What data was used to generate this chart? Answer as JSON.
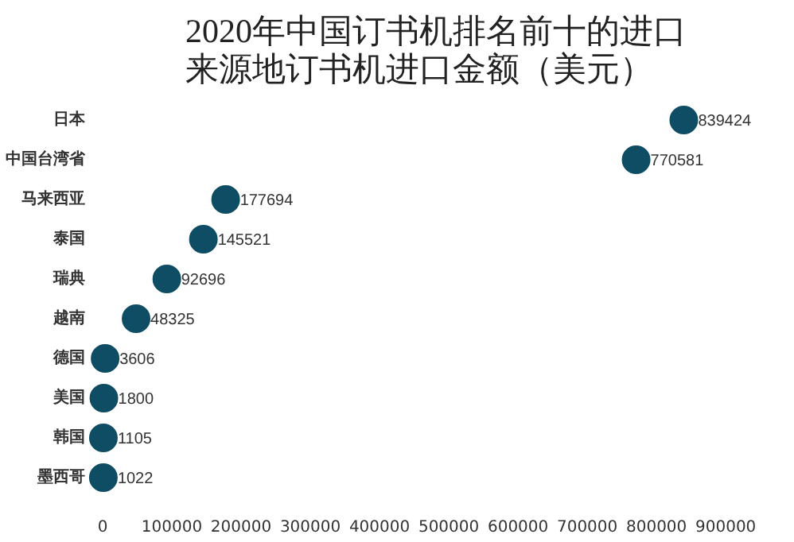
{
  "chart_data": {
    "type": "scatter",
    "orientation": "horizontal",
    "title": "2020年中国订书机排名前十的进口来源地订书机进口金额（美元）",
    "categories": [
      "日本",
      "中国台湾省",
      "马来西亚",
      "泰国",
      "瑞典",
      "越南",
      "德国",
      "美国",
      "韩国",
      "墨西哥"
    ],
    "values": [
      839424,
      770581,
      177694,
      145521,
      92696,
      48325,
      3606,
      1800,
      1105,
      1022
    ],
    "color": "#0e4d64",
    "marker": "circle",
    "data_labels": true,
    "grid": false,
    "xlim": [
      0,
      900000
    ],
    "xticks": [
      0,
      100000,
      200000,
      300000,
      400000,
      500000,
      600000,
      700000,
      800000,
      900000
    ]
  }
}
